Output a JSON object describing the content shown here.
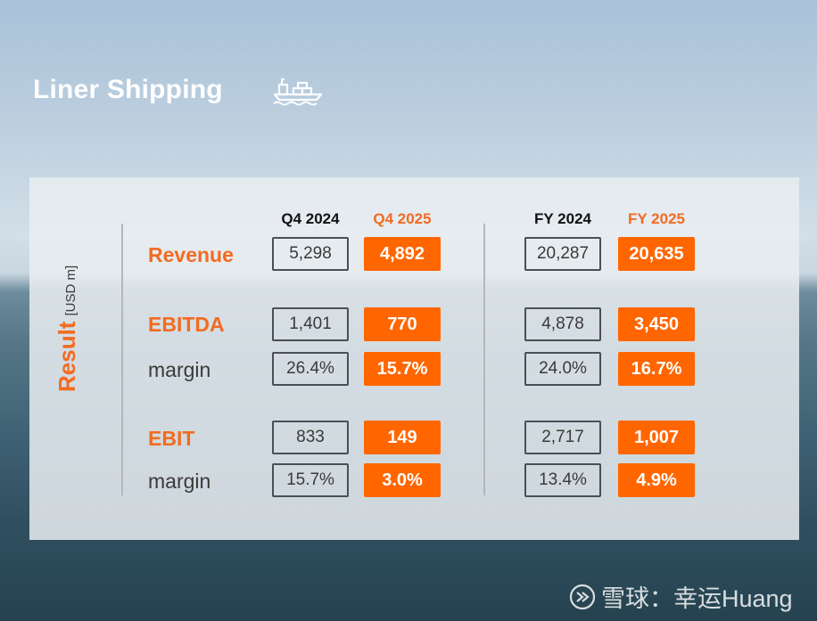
{
  "title": "Liner Shipping",
  "icon": "ship-icon",
  "side_label": {
    "main": "Result",
    "unit": "[USD m]"
  },
  "headers": {
    "q4_2024": "Q4 2024",
    "q4_2025": "Q4 2025",
    "fy_2024": "FY 2024",
    "fy_2025": "FY 2025"
  },
  "rows": [
    {
      "label": "Revenue",
      "q4_2024": "5,298",
      "q4_2025": "4,892",
      "fy_2024": "20,287",
      "fy_2025": "20,635"
    },
    {
      "label": "EBITDA",
      "q4_2024": "1,401",
      "q4_2025": "770",
      "fy_2024": "4,878",
      "fy_2025": "3,450"
    },
    {
      "label": "margin",
      "q4_2024": "26.4%",
      "q4_2025": "15.7%",
      "fy_2024": "24.0%",
      "fy_2025": "16.7%"
    },
    {
      "label": "EBIT",
      "q4_2024": "833",
      "q4_2025": "149",
      "fy_2024": "2,717",
      "fy_2025": "1,007"
    },
    {
      "label": "margin",
      "q4_2024": "15.7%",
      "q4_2025": "3.0%",
      "fy_2024": "13.4%",
      "fy_2025": "4.9%"
    }
  ],
  "watermark": "雪球：幸运Huang",
  "colors": {
    "accent": "#ff6600",
    "text_dark": "#3a3a3a",
    "panel": "#e9edf1"
  }
}
